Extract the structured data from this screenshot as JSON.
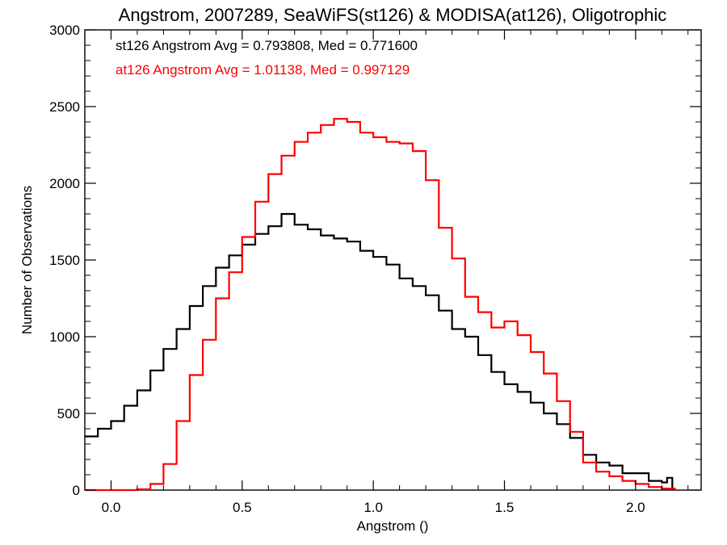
{
  "chart_data": {
    "type": "line",
    "step": true,
    "title": "Angstrom, 2007289, SeaWiFS(st126) & MODISA(at126), Oligotrophic",
    "xlabel": "Angstrom ()",
    "ylabel": "Number of Observations",
    "xlim": [
      -0.1,
      2.25
    ],
    "ylim": [
      0,
      3000
    ],
    "xticks": [
      0.0,
      0.5,
      1.0,
      1.5,
      2.0
    ],
    "xtick_labels": [
      "0.0",
      "0.5",
      "1.0",
      "1.5",
      "2.0"
    ],
    "yticks": [
      0,
      500,
      1000,
      1500,
      2000,
      2500,
      3000
    ],
    "ytick_labels": [
      "0",
      "500",
      "1000",
      "1500",
      "2000",
      "2500",
      "3000"
    ],
    "annotations": [
      {
        "text": "st126 Angstrom Avg = 0.793808, Med = 0.771600",
        "color": "#000000"
      },
      {
        "text": "at126 Angstrom Avg = 1.01138, Med = 0.997129",
        "color": "#ff0000"
      }
    ],
    "series": [
      {
        "color": "#000000",
        "x": [
          -0.1,
          -0.05,
          0.0,
          0.05,
          0.1,
          0.15,
          0.2,
          0.25,
          0.3,
          0.35,
          0.4,
          0.45,
          0.5,
          0.55,
          0.6,
          0.65,
          0.7,
          0.75,
          0.8,
          0.85,
          0.9,
          0.95,
          1.0,
          1.05,
          1.1,
          1.15,
          1.2,
          1.25,
          1.3,
          1.35,
          1.4,
          1.45,
          1.5,
          1.55,
          1.6,
          1.65,
          1.7,
          1.75,
          1.8,
          1.85,
          1.9,
          1.95,
          2.0,
          2.05,
          2.1,
          2.12,
          2.14
        ],
        "y": [
          350,
          400,
          450,
          550,
          650,
          780,
          920,
          1050,
          1200,
          1330,
          1450,
          1530,
          1600,
          1670,
          1720,
          1800,
          1730,
          1700,
          1660,
          1640,
          1620,
          1560,
          1520,
          1470,
          1380,
          1330,
          1270,
          1170,
          1050,
          1000,
          880,
          770,
          690,
          640,
          570,
          500,
          430,
          340,
          230,
          180,
          160,
          110,
          110,
          60,
          50,
          80,
          0
        ]
      },
      {
        "color": "#ff0000",
        "x": [
          -0.1,
          0.05,
          0.1,
          0.15,
          0.2,
          0.25,
          0.3,
          0.35,
          0.4,
          0.45,
          0.5,
          0.55,
          0.6,
          0.65,
          0.7,
          0.75,
          0.8,
          0.85,
          0.9,
          0.95,
          1.0,
          1.05,
          1.1,
          1.15,
          1.2,
          1.25,
          1.3,
          1.35,
          1.4,
          1.45,
          1.5,
          1.55,
          1.6,
          1.65,
          1.7,
          1.75,
          1.8,
          1.85,
          1.9,
          1.95,
          2.0,
          2.05,
          2.1,
          2.15
        ],
        "y": [
          0,
          0,
          5,
          40,
          170,
          450,
          750,
          980,
          1250,
          1420,
          1650,
          1880,
          2060,
          2180,
          2270,
          2330,
          2380,
          2420,
          2400,
          2330,
          2300,
          2270,
          2260,
          2210,
          2020,
          1710,
          1510,
          1260,
          1160,
          1060,
          1100,
          1010,
          900,
          760,
          580,
          380,
          180,
          120,
          90,
          60,
          40,
          20,
          10,
          0
        ]
      }
    ]
  }
}
